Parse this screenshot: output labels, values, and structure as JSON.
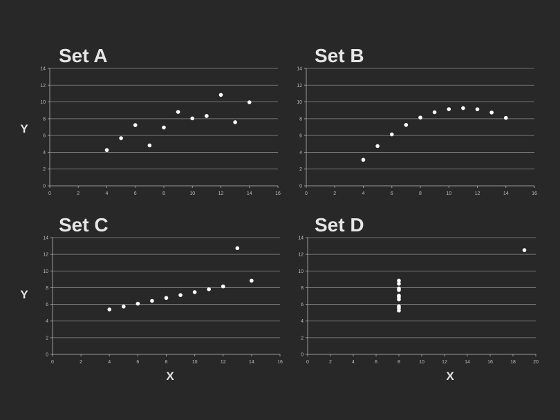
{
  "chart_data": [
    {
      "type": "scatter",
      "title": "Set A",
      "xlabel": "",
      "ylabel": "Y",
      "xlim": [
        0,
        16
      ],
      "ylim": [
        0,
        14
      ],
      "xticks": [
        0,
        2,
        4,
        6,
        8,
        10,
        12,
        14,
        16
      ],
      "yticks": [
        0,
        2,
        4,
        6,
        8,
        10,
        12,
        14
      ],
      "grid": true,
      "points": [
        {
          "x": 4,
          "y": 4.26
        },
        {
          "x": 5,
          "y": 5.68
        },
        {
          "x": 6,
          "y": 7.24
        },
        {
          "x": 7,
          "y": 4.82
        },
        {
          "x": 8,
          "y": 6.95
        },
        {
          "x": 9,
          "y": 8.81
        },
        {
          "x": 10,
          "y": 8.04
        },
        {
          "x": 11,
          "y": 8.33
        },
        {
          "x": 12,
          "y": 10.84
        },
        {
          "x": 13,
          "y": 7.58
        },
        {
          "x": 14,
          "y": 9.96
        }
      ]
    },
    {
      "type": "scatter",
      "title": "Set B",
      "xlabel": "",
      "ylabel": "",
      "xlim": [
        0,
        16
      ],
      "ylim": [
        0,
        14
      ],
      "xticks": [
        0,
        2,
        4,
        6,
        8,
        10,
        12,
        14,
        16
      ],
      "yticks": [
        0,
        2,
        4,
        6,
        8,
        10,
        12,
        14
      ],
      "grid": true,
      "points": [
        {
          "x": 4,
          "y": 3.1
        },
        {
          "x": 5,
          "y": 4.74
        },
        {
          "x": 6,
          "y": 6.13
        },
        {
          "x": 7,
          "y": 7.26
        },
        {
          "x": 8,
          "y": 8.14
        },
        {
          "x": 9,
          "y": 8.77
        },
        {
          "x": 10,
          "y": 9.14
        },
        {
          "x": 11,
          "y": 9.26
        },
        {
          "x": 12,
          "y": 9.13
        },
        {
          "x": 13,
          "y": 8.74
        },
        {
          "x": 14,
          "y": 8.1
        }
      ]
    },
    {
      "type": "scatter",
      "title": "Set C",
      "xlabel": "X",
      "ylabel": "Y",
      "xlim": [
        0,
        16
      ],
      "ylim": [
        0,
        14
      ],
      "xticks": [
        0,
        2,
        4,
        6,
        8,
        10,
        12,
        14,
        16
      ],
      "yticks": [
        0,
        2,
        4,
        6,
        8,
        10,
        12,
        14
      ],
      "grid": true,
      "points": [
        {
          "x": 4,
          "y": 5.39
        },
        {
          "x": 5,
          "y": 5.73
        },
        {
          "x": 6,
          "y": 6.08
        },
        {
          "x": 7,
          "y": 6.42
        },
        {
          "x": 8,
          "y": 6.77
        },
        {
          "x": 9,
          "y": 7.11
        },
        {
          "x": 10,
          "y": 7.46
        },
        {
          "x": 11,
          "y": 7.81
        },
        {
          "x": 12,
          "y": 8.15
        },
        {
          "x": 13,
          "y": 12.74
        },
        {
          "x": 14,
          "y": 8.84
        }
      ]
    },
    {
      "type": "scatter",
      "title": "Set D",
      "xlabel": "X",
      "ylabel": "",
      "xlim": [
        0,
        20
      ],
      "ylim": [
        0,
        14
      ],
      "xticks": [
        0,
        2,
        4,
        6,
        8,
        10,
        12,
        14,
        16,
        18,
        20
      ],
      "yticks": [
        0,
        2,
        4,
        6,
        8,
        10,
        12,
        14
      ],
      "grid": true,
      "points": [
        {
          "x": 8,
          "y": 6.58
        },
        {
          "x": 8,
          "y": 5.76
        },
        {
          "x": 8,
          "y": 7.71
        },
        {
          "x": 8,
          "y": 8.84
        },
        {
          "x": 8,
          "y": 8.47
        },
        {
          "x": 8,
          "y": 7.04
        },
        {
          "x": 8,
          "y": 5.25
        },
        {
          "x": 19,
          "y": 12.5
        },
        {
          "x": 8,
          "y": 5.56
        },
        {
          "x": 8,
          "y": 7.91
        },
        {
          "x": 8,
          "y": 6.89
        }
      ]
    }
  ]
}
